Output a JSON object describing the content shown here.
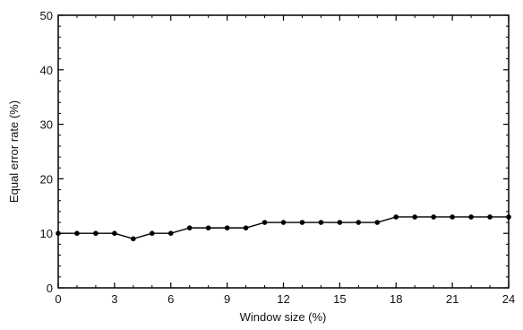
{
  "chart_data": {
    "type": "line",
    "xlabel": "Window size (%)",
    "ylabel": "Equal error rate (%)",
    "xlim": [
      0,
      24
    ],
    "ylim": [
      0,
      50
    ],
    "xticks": [
      0,
      3,
      6,
      9,
      12,
      15,
      18,
      21,
      24
    ],
    "yticks": [
      0,
      10,
      20,
      30,
      40,
      50
    ],
    "grid": false,
    "series": [
      {
        "x": [
          0,
          1,
          2,
          3,
          4,
          5,
          6,
          7,
          8,
          9,
          10,
          11,
          12,
          13,
          14,
          15,
          16,
          17,
          18,
          19,
          20,
          21,
          22,
          23,
          24
        ],
        "values": [
          10,
          10,
          10,
          10,
          9,
          10,
          10,
          11,
          11,
          11,
          11,
          12,
          12,
          12,
          12,
          12,
          12,
          12,
          13,
          13,
          13,
          13,
          13,
          13,
          13
        ]
      }
    ],
    "colors": {
      "line": "#000000",
      "marker": "#000000",
      "axis": "#000000"
    }
  }
}
